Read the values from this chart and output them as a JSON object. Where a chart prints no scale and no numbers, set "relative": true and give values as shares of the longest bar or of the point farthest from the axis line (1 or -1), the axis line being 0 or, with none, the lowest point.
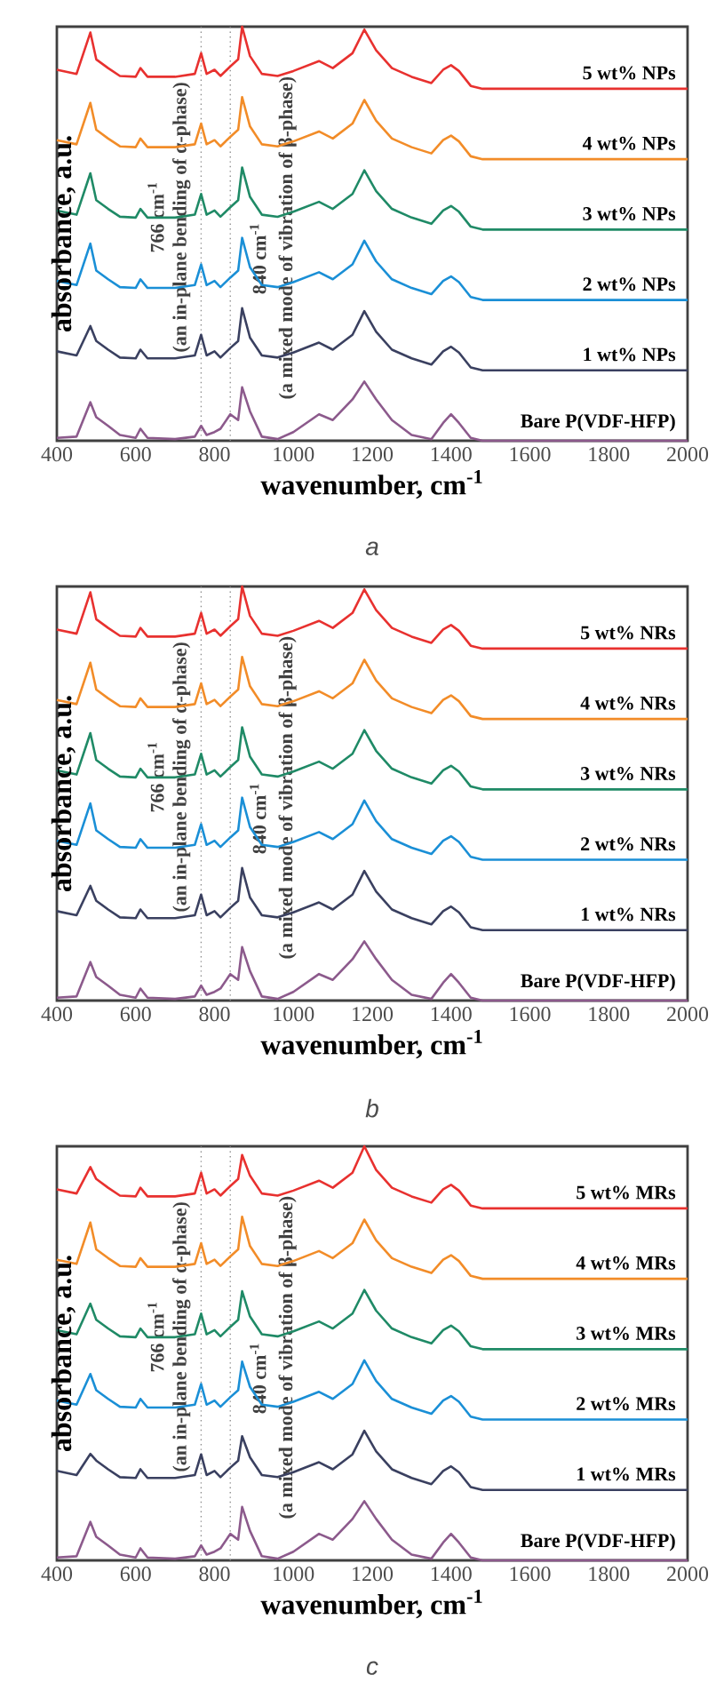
{
  "chart_data": [
    {
      "type": "line",
      "title": "a",
      "xlabel": "wavenumber, cm$^{-1}$",
      "ylabel": "absorbance, a.u.",
      "relative": true,
      "tick_labels": "x",
      "marker": "none",
      "xlim": [
        400,
        2000
      ],
      "xticks": [
        400,
        600,
        800,
        1000,
        1200,
        1400,
        1600,
        1800,
        2000
      ],
      "x": [
        400,
        450,
        485,
        500,
        530,
        560,
        600,
        612,
        630,
        700,
        750,
        766,
        780,
        800,
        815,
        840,
        860,
        870,
        890,
        920,
        960,
        1000,
        1065,
        1100,
        1150,
        1180,
        1210,
        1250,
        1300,
        1350,
        1380,
        1400,
        1420,
        1450,
        1480,
        2000
      ],
      "series": [
        {
          "name": "5 wt% NPs",
          "color": "#e8312f",
          "values": [
            0.896,
            0.886,
            0.986,
            0.921,
            0.9,
            0.881,
            0.879,
            0.9,
            0.879,
            0.879,
            0.886,
            0.936,
            0.886,
            0.896,
            0.881,
            0.904,
            0.921,
            1,
            0.929,
            0.886,
            0.881,
            0.893,
            0.917,
            0.9,
            0.936,
            0.993,
            0.943,
            0.9,
            0.879,
            0.864,
            0.896,
            0.907,
            0.893,
            0.857,
            0.85,
            0.85
          ]
        },
        {
          "name": "4 wt% NPs",
          "color": "#f28c28",
          "values": [
            0.726,
            0.716,
            0.816,
            0.751,
            0.73,
            0.711,
            0.709,
            0.73,
            0.709,
            0.709,
            0.716,
            0.766,
            0.716,
            0.726,
            0.711,
            0.734,
            0.751,
            0.83,
            0.759,
            0.716,
            0.711,
            0.723,
            0.747,
            0.73,
            0.766,
            0.823,
            0.773,
            0.73,
            0.709,
            0.694,
            0.726,
            0.737,
            0.723,
            0.687,
            0.68,
            0.68
          ]
        },
        {
          "name": "3 wt% NPs",
          "color": "#1f8a66",
          "values": [
            0.556,
            0.546,
            0.646,
            0.581,
            0.56,
            0.541,
            0.539,
            0.56,
            0.539,
            0.539,
            0.546,
            0.596,
            0.546,
            0.556,
            0.541,
            0.564,
            0.581,
            0.66,
            0.589,
            0.546,
            0.541,
            0.553,
            0.577,
            0.56,
            0.596,
            0.653,
            0.603,
            0.56,
            0.539,
            0.524,
            0.556,
            0.567,
            0.553,
            0.517,
            0.51,
            0.51
          ]
        },
        {
          "name": "2 wt% NPs",
          "color": "#1a8fd6",
          "values": [
            0.386,
            0.376,
            0.476,
            0.411,
            0.39,
            0.371,
            0.369,
            0.39,
            0.369,
            0.369,
            0.376,
            0.426,
            0.376,
            0.386,
            0.371,
            0.394,
            0.411,
            0.49,
            0.419,
            0.376,
            0.371,
            0.383,
            0.407,
            0.39,
            0.426,
            0.483,
            0.433,
            0.39,
            0.369,
            0.354,
            0.386,
            0.397,
            0.383,
            0.347,
            0.34,
            0.34
          ]
        },
        {
          "name": "1 wt% NPs",
          "color": "#3a4060",
          "values": [
            0.216,
            0.206,
            0.277,
            0.241,
            0.22,
            0.201,
            0.199,
            0.22,
            0.199,
            0.199,
            0.206,
            0.256,
            0.206,
            0.216,
            0.201,
            0.224,
            0.241,
            0.32,
            0.249,
            0.206,
            0.201,
            0.213,
            0.237,
            0.22,
            0.256,
            0.313,
            0.263,
            0.22,
            0.199,
            0.184,
            0.216,
            0.227,
            0.213,
            0.177,
            0.17,
            0.17
          ]
        },
        {
          "name": "Bare P(VDF-HFP)",
          "color": "#8c5a8c",
          "values": [
            0.007,
            0.01,
            0.093,
            0.057,
            0.036,
            0.014,
            0.007,
            0.029,
            0.007,
            0.004,
            0.01,
            0.036,
            0.014,
            0.021,
            0.029,
            0.064,
            0.05,
            0.129,
            0.071,
            0.01,
            0.004,
            0.021,
            0.064,
            0.05,
            0.1,
            0.143,
            0.1,
            0.05,
            0.014,
            0.004,
            0.043,
            0.064,
            0.043,
            0.007,
            0,
            0
          ]
        }
      ],
      "ref_lines": [
        {
          "axis": "x",
          "value": 766,
          "label": "766 cm$^{-1}$",
          "line_style": "dotted",
          "color": "#909090"
        },
        {
          "axis": "x",
          "value": 840,
          "label": "840 cm$^{-1}$",
          "line_style": "dotted",
          "color": "#909090"
        }
      ],
      "annotations": [
        "(an in-plane bending of α-phase)",
        "(a mixed mode of vibration of β-phase)"
      ]
    },
    {
      "type": "line",
      "title": "b",
      "xlabel": "wavenumber, cm$^{-1}$",
      "ylabel": "absorbance, a.u.",
      "relative": true,
      "tick_labels": "x",
      "marker": "none",
      "xlim": [
        400,
        2000
      ],
      "xticks": [
        400,
        600,
        800,
        1000,
        1200,
        1400,
        1600,
        1800,
        2000
      ],
      "x": [
        400,
        450,
        485,
        500,
        530,
        560,
        600,
        612,
        630,
        700,
        750,
        766,
        780,
        800,
        815,
        840,
        860,
        870,
        890,
        920,
        960,
        1000,
        1065,
        1100,
        1150,
        1180,
        1210,
        1250,
        1300,
        1350,
        1380,
        1400,
        1420,
        1450,
        1480,
        2000
      ],
      "series": [
        {
          "name": "5 wt% NRs",
          "color": "#e8312f",
          "values": [
            0.896,
            0.886,
            0.986,
            0.921,
            0.9,
            0.881,
            0.879,
            0.9,
            0.879,
            0.879,
            0.886,
            0.936,
            0.886,
            0.896,
            0.881,
            0.904,
            0.921,
            1,
            0.929,
            0.886,
            0.881,
            0.893,
            0.917,
            0.9,
            0.936,
            0.993,
            0.943,
            0.9,
            0.879,
            0.864,
            0.896,
            0.907,
            0.893,
            0.857,
            0.85,
            0.85
          ]
        },
        {
          "name": "4 wt% NRs",
          "color": "#f28c28",
          "values": [
            0.726,
            0.716,
            0.816,
            0.751,
            0.73,
            0.711,
            0.709,
            0.73,
            0.709,
            0.709,
            0.716,
            0.766,
            0.716,
            0.726,
            0.711,
            0.734,
            0.751,
            0.83,
            0.759,
            0.716,
            0.711,
            0.723,
            0.747,
            0.73,
            0.766,
            0.823,
            0.773,
            0.73,
            0.709,
            0.694,
            0.726,
            0.737,
            0.723,
            0.687,
            0.68,
            0.68
          ]
        },
        {
          "name": "3 wt% NRs",
          "color": "#1f8a66",
          "values": [
            0.556,
            0.546,
            0.646,
            0.581,
            0.56,
            0.541,
            0.539,
            0.56,
            0.539,
            0.539,
            0.546,
            0.596,
            0.546,
            0.556,
            0.541,
            0.564,
            0.581,
            0.66,
            0.589,
            0.546,
            0.541,
            0.553,
            0.577,
            0.56,
            0.596,
            0.653,
            0.603,
            0.56,
            0.539,
            0.524,
            0.556,
            0.567,
            0.553,
            0.517,
            0.51,
            0.51
          ]
        },
        {
          "name": "2 wt% NRs",
          "color": "#1a8fd6",
          "values": [
            0.386,
            0.376,
            0.476,
            0.411,
            0.39,
            0.371,
            0.369,
            0.39,
            0.369,
            0.369,
            0.376,
            0.426,
            0.376,
            0.386,
            0.371,
            0.394,
            0.411,
            0.49,
            0.419,
            0.376,
            0.371,
            0.383,
            0.407,
            0.39,
            0.426,
            0.483,
            0.433,
            0.39,
            0.369,
            0.354,
            0.386,
            0.397,
            0.383,
            0.347,
            0.34,
            0.34
          ]
        },
        {
          "name": "1 wt% NRs",
          "color": "#3a4060",
          "values": [
            0.216,
            0.206,
            0.277,
            0.241,
            0.22,
            0.201,
            0.199,
            0.22,
            0.199,
            0.199,
            0.206,
            0.256,
            0.206,
            0.216,
            0.201,
            0.224,
            0.241,
            0.32,
            0.249,
            0.206,
            0.201,
            0.213,
            0.237,
            0.22,
            0.256,
            0.313,
            0.263,
            0.22,
            0.199,
            0.184,
            0.216,
            0.227,
            0.213,
            0.177,
            0.17,
            0.17
          ]
        },
        {
          "name": "Bare P(VDF-HFP)",
          "color": "#8c5a8c",
          "values": [
            0.007,
            0.01,
            0.093,
            0.057,
            0.036,
            0.014,
            0.007,
            0.029,
            0.007,
            0.004,
            0.01,
            0.036,
            0.014,
            0.021,
            0.029,
            0.064,
            0.05,
            0.129,
            0.071,
            0.01,
            0.004,
            0.021,
            0.064,
            0.05,
            0.1,
            0.143,
            0.1,
            0.05,
            0.014,
            0.004,
            0.043,
            0.064,
            0.043,
            0.007,
            0,
            0
          ]
        }
      ],
      "ref_lines": [
        {
          "axis": "x",
          "value": 766,
          "label": "766 cm$^{-1}$",
          "line_style": "dotted",
          "color": "#909090"
        },
        {
          "axis": "x",
          "value": 840,
          "label": "840 cm$^{-1}$",
          "line_style": "dotted",
          "color": "#909090"
        }
      ],
      "annotations": [
        "(an in-plane bending of α-phase)",
        "(a mixed mode of vibration of β-phase)"
      ]
    },
    {
      "type": "line",
      "title": "c",
      "xlabel": "wavenumber, cm$^{-1}$",
      "ylabel": "absorbance, a.u.",
      "relative": true,
      "tick_labels": "x",
      "marker": "none",
      "xlim": [
        400,
        2000
      ],
      "xticks": [
        400,
        600,
        800,
        1000,
        1200,
        1400,
        1600,
        1800,
        2000
      ],
      "x": [
        400,
        450,
        485,
        500,
        530,
        560,
        600,
        612,
        630,
        700,
        750,
        766,
        780,
        800,
        815,
        840,
        860,
        870,
        890,
        920,
        960,
        1000,
        1065,
        1100,
        1150,
        1180,
        1210,
        1250,
        1300,
        1350,
        1380,
        1400,
        1420,
        1450,
        1480,
        2000
      ],
      "series": [
        {
          "name": "5 wt% MRs",
          "color": "#e8312f",
          "values": [
            0.896,
            0.886,
            0.95,
            0.921,
            0.9,
            0.881,
            0.879,
            0.9,
            0.879,
            0.879,
            0.886,
            0.936,
            0.886,
            0.896,
            0.881,
            0.904,
            0.921,
            0.979,
            0.929,
            0.886,
            0.881,
            0.893,
            0.917,
            0.9,
            0.936,
            1,
            0.943,
            0.9,
            0.879,
            0.864,
            0.896,
            0.907,
            0.893,
            0.857,
            0.85,
            0.85
          ]
        },
        {
          "name": "4 wt% MRs",
          "color": "#f28c28",
          "values": [
            0.726,
            0.716,
            0.816,
            0.751,
            0.73,
            0.711,
            0.709,
            0.73,
            0.709,
            0.709,
            0.716,
            0.766,
            0.716,
            0.726,
            0.711,
            0.734,
            0.751,
            0.83,
            0.759,
            0.716,
            0.711,
            0.723,
            0.747,
            0.73,
            0.766,
            0.823,
            0.773,
            0.73,
            0.709,
            0.694,
            0.726,
            0.737,
            0.723,
            0.687,
            0.68,
            0.68
          ]
        },
        {
          "name": "3 wt% MRs",
          "color": "#1f8a66",
          "values": [
            0.556,
            0.546,
            0.62,
            0.581,
            0.56,
            0.541,
            0.539,
            0.56,
            0.539,
            0.539,
            0.546,
            0.596,
            0.546,
            0.556,
            0.541,
            0.564,
            0.581,
            0.65,
            0.589,
            0.546,
            0.541,
            0.553,
            0.577,
            0.56,
            0.596,
            0.653,
            0.603,
            0.56,
            0.539,
            0.524,
            0.556,
            0.567,
            0.553,
            0.517,
            0.51,
            0.51
          ]
        },
        {
          "name": "2 wt% MRs",
          "color": "#1a8fd6",
          "values": [
            0.386,
            0.376,
            0.45,
            0.411,
            0.39,
            0.371,
            0.369,
            0.39,
            0.369,
            0.369,
            0.376,
            0.426,
            0.376,
            0.386,
            0.371,
            0.394,
            0.411,
            0.48,
            0.419,
            0.376,
            0.371,
            0.383,
            0.407,
            0.39,
            0.426,
            0.483,
            0.433,
            0.39,
            0.369,
            0.354,
            0.386,
            0.397,
            0.383,
            0.347,
            0.34,
            0.34
          ]
        },
        {
          "name": "1 wt% MRs",
          "color": "#3a4060",
          "values": [
            0.216,
            0.206,
            0.257,
            0.241,
            0.22,
            0.201,
            0.199,
            0.22,
            0.199,
            0.199,
            0.206,
            0.256,
            0.206,
            0.216,
            0.201,
            0.224,
            0.241,
            0.3,
            0.249,
            0.206,
            0.201,
            0.213,
            0.237,
            0.22,
            0.256,
            0.313,
            0.263,
            0.22,
            0.199,
            0.184,
            0.216,
            0.227,
            0.213,
            0.177,
            0.17,
            0.17
          ]
        },
        {
          "name": "Bare P(VDF-HFP)",
          "color": "#8c5a8c",
          "values": [
            0.007,
            0.01,
            0.093,
            0.057,
            0.036,
            0.014,
            0.007,
            0.029,
            0.007,
            0.004,
            0.01,
            0.036,
            0.014,
            0.021,
            0.029,
            0.064,
            0.05,
            0.129,
            0.071,
            0.01,
            0.004,
            0.021,
            0.064,
            0.05,
            0.1,
            0.143,
            0.1,
            0.05,
            0.014,
            0.004,
            0.043,
            0.064,
            0.043,
            0.007,
            0,
            0
          ]
        }
      ],
      "ref_lines": [
        {
          "axis": "x",
          "value": 766,
          "label": "766 cm$^{-1}$",
          "line_style": "dotted",
          "color": "#909090"
        },
        {
          "axis": "x",
          "value": 840,
          "label": "840 cm$^{-1}$",
          "line_style": "dotted",
          "color": "#909090"
        }
      ],
      "annotations": [
        "(an in-plane bending of α-phase)",
        "(a mixed mode of vibration of β-phase)"
      ]
    }
  ]
}
